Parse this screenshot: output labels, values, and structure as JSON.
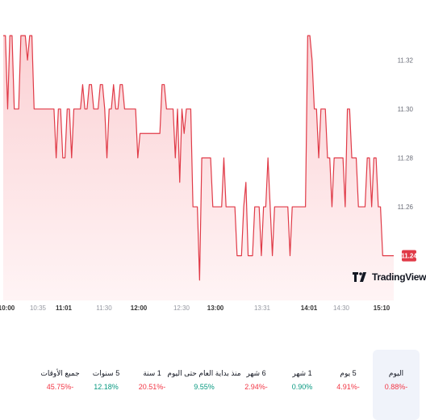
{
  "chart_data": {
    "type": "area",
    "x_ticks": [
      "10:00",
      "10:35",
      "11:01",
      "11:30",
      "12:00",
      "12:30",
      "13:00",
      "13:31",
      "14:01",
      "14:30",
      "15:10"
    ],
    "x_ticks_bold": [
      "10:00",
      "11:01",
      "12:00",
      "13:00",
      "14:01",
      "15:10"
    ],
    "y_ticks": [
      "11.32",
      "11.30",
      "11.28",
      "11.26"
    ],
    "y_tick_values": [
      11.32,
      11.3,
      11.28,
      11.26
    ],
    "ylim": [
      11.225,
      11.335
    ],
    "last_price": "11.24",
    "last_price_value": 11.24,
    "series": [
      {
        "values": [
          11.33,
          11.33,
          11.3,
          11.33,
          11.33,
          11.3,
          11.3,
          11.3,
          11.33,
          11.33,
          11.33,
          11.32,
          11.33,
          11.33,
          11.3,
          11.3,
          11.3,
          11.3,
          11.3,
          11.3,
          11.3,
          11.3,
          11.3,
          11.3,
          11.28,
          11.3,
          11.3,
          11.28,
          11.28,
          11.3,
          11.3,
          11.28,
          11.3,
          11.3,
          11.3,
          11.3,
          11.31,
          11.3,
          11.3,
          11.31,
          11.31,
          11.3,
          11.3,
          11.3,
          11.31,
          11.31,
          11.3,
          11.28,
          11.3,
          11.3,
          11.31,
          11.3,
          11.3,
          11.31,
          11.31,
          11.3,
          11.3,
          11.3,
          11.3,
          11.3,
          11.3,
          11.28,
          11.29,
          11.29,
          11.29,
          11.29,
          11.29,
          11.29,
          11.29,
          11.29,
          11.29,
          11.29,
          11.31,
          11.31,
          11.3,
          11.3,
          11.3,
          11.3,
          11.28,
          11.3,
          11.27,
          11.3,
          11.29,
          11.3,
          11.3,
          11.3,
          11.26,
          11.26,
          11.26,
          11.23,
          11.28,
          11.28,
          11.28,
          11.28,
          11.28,
          11.26,
          11.26,
          11.26,
          11.26,
          11.26,
          11.28,
          11.26,
          11.26,
          11.26,
          11.26,
          11.26,
          11.24,
          11.24,
          11.24,
          11.26,
          11.27,
          11.24,
          11.24,
          11.24,
          11.26,
          11.26,
          11.26,
          11.24,
          11.26,
          11.26,
          11.28,
          11.26,
          11.24,
          11.26,
          11.26,
          11.26,
          11.26,
          11.26,
          11.26,
          11.26,
          11.24,
          11.26,
          11.26,
          11.26,
          11.26,
          11.26,
          11.26,
          11.26,
          11.33,
          11.33,
          11.32,
          11.3,
          11.3,
          11.28,
          11.3,
          11.3,
          11.3,
          11.28,
          11.28,
          11.26,
          11.28,
          11.28,
          11.28,
          11.28,
          11.28,
          11.26,
          11.3,
          11.3,
          11.28,
          11.28,
          11.28,
          11.26,
          11.26,
          11.26,
          11.26,
          11.28,
          11.28,
          11.26,
          11.28,
          11.28,
          11.26,
          11.26,
          11.24,
          11.24,
          11.24,
          11.24,
          11.24,
          11.24
        ]
      }
    ]
  },
  "watermark": {
    "text": "TradingView"
  },
  "periods": [
    {
      "label": "اليوم",
      "value": "0.88%-",
      "trend": "neg",
      "active": true
    },
    {
      "label": "5 يوم",
      "value": "4.91%-",
      "trend": "neg",
      "active": false
    },
    {
      "label": "1 شهر",
      "value": "0.90%",
      "trend": "pos",
      "active": false
    },
    {
      "label": "6 شهر",
      "value": "2.94%-",
      "trend": "neg",
      "active": false
    },
    {
      "label": "منذ بداية العام حتى اليوم",
      "value": "9.55%",
      "trend": "pos",
      "active": false,
      "wide": true
    },
    {
      "label": "1 سنة",
      "value": "20.51%-",
      "trend": "neg",
      "active": false
    },
    {
      "label": "5 سنوات",
      "value": "12.18%",
      "trend": "pos",
      "active": false
    },
    {
      "label": "جميع الأوقات",
      "value": "45.75%-",
      "trend": "neg",
      "active": false
    }
  ],
  "colors": {
    "line": "#e03a47",
    "fill_top": "#fbd1d4",
    "fill_bottom": "#fff4f5",
    "badge": "#e03a47"
  }
}
